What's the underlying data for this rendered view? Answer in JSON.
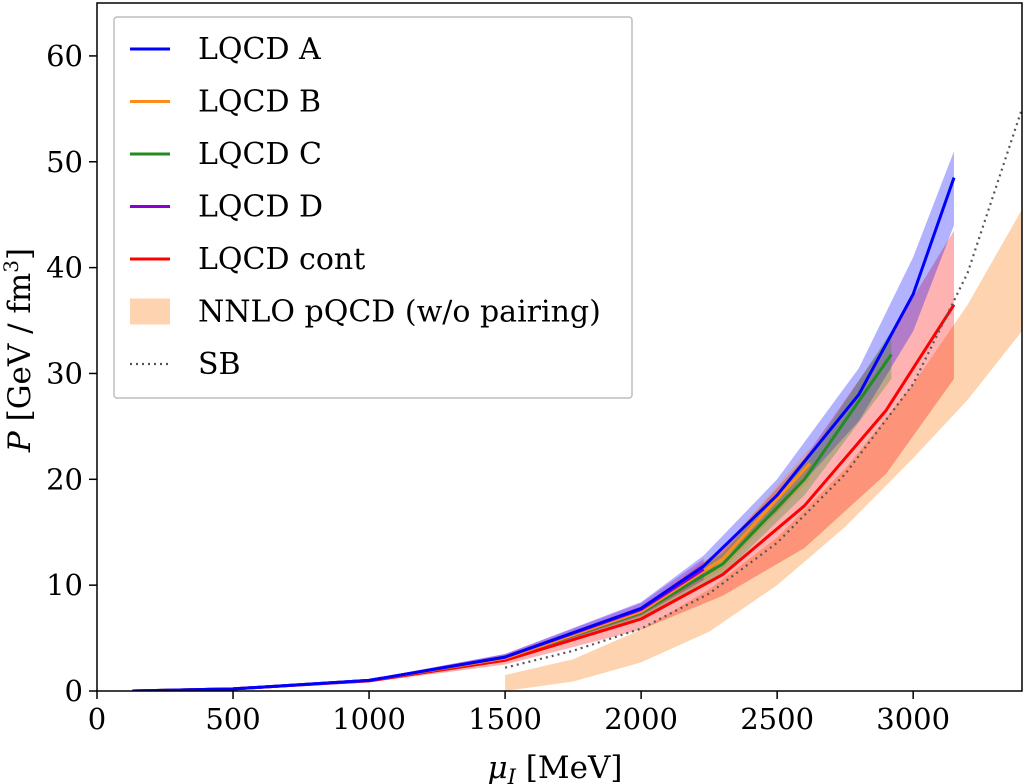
{
  "chart_data": {
    "type": "line",
    "title": "",
    "xlabel": "μ_I [MeV]",
    "xlabel_main": "μ",
    "xlabel_sub": "I",
    "xlabel_unit": " [MeV]",
    "ylabel": "P [GeV / fm³]",
    "ylabel_main": "P",
    "ylabel_unit": " [GeV / fm",
    "ylabel_sup": "3",
    "ylabel_close": "]",
    "xlim": [
      0,
      3400
    ],
    "ylim": [
      0,
      65
    ],
    "xticks": [
      0,
      500,
      1000,
      1500,
      2000,
      2500,
      3000
    ],
    "yticks": [
      0,
      10,
      20,
      30,
      40,
      50,
      60
    ],
    "xtick_labels": [
      "0",
      "500",
      "1000",
      "1500",
      "2000",
      "2500",
      "3000"
    ],
    "ytick_labels": [
      "0",
      "10",
      "20",
      "30",
      "40",
      "50",
      "60"
    ],
    "grid": false,
    "legend_position": "top-left",
    "series": [
      {
        "name": "LQCD A",
        "color": "#0000ff",
        "kind": "line_band",
        "x": [
          130,
          500,
          1000,
          1500,
          2000,
          2230,
          2500,
          2800,
          3000,
          3150
        ],
        "y": [
          0.0,
          0.2,
          1.0,
          3.2,
          7.8,
          11.8,
          18.5,
          28.0,
          37.5,
          48.5
        ],
        "band_lower": [
          0.0,
          0.15,
          0.9,
          2.9,
          7.2,
          10.8,
          17.0,
          25.5,
          34.0,
          44.0
        ],
        "band_upper": [
          0.0,
          0.25,
          1.1,
          3.5,
          8.4,
          12.8,
          20.0,
          30.5,
          41.0,
          51.0
        ]
      },
      {
        "name": "LQCD B",
        "color": "#ff8c1a",
        "kind": "line_band",
        "x": [
          130,
          500,
          1000,
          1500,
          2000,
          2300,
          2620
        ],
        "y": [
          0.0,
          0.2,
          1.0,
          3.1,
          7.5,
          12.5,
          21.5
        ],
        "band_lower": [
          0.0,
          0.15,
          0.9,
          2.8,
          7.0,
          11.5,
          20.0
        ],
        "band_upper": [
          0.0,
          0.25,
          1.1,
          3.4,
          8.0,
          13.5,
          23.0
        ]
      },
      {
        "name": "LQCD C",
        "color": "#228b22",
        "kind": "line_band",
        "x": [
          130,
          500,
          1000,
          1500,
          2000,
          2300,
          2600,
          2920
        ],
        "y": [
          0.0,
          0.2,
          1.0,
          3.1,
          7.4,
          12.0,
          20.0,
          31.8
        ],
        "band_lower": [
          0.0,
          0.15,
          0.9,
          2.8,
          6.9,
          11.0,
          18.5,
          29.5
        ],
        "band_upper": [
          0.0,
          0.25,
          1.1,
          3.4,
          7.9,
          13.0,
          21.5,
          34.0
        ]
      },
      {
        "name": "LQCD D",
        "color": "#8b00cc",
        "kind": "line_band",
        "x": [
          130,
          500,
          1000,
          1500,
          2000,
          2230
        ],
        "y": [
          0.0,
          0.2,
          1.0,
          3.2,
          7.7,
          11.5
        ],
        "band_lower": [
          0.0,
          0.15,
          0.9,
          2.9,
          7.1,
          10.5
        ],
        "band_upper": [
          0.0,
          0.25,
          1.1,
          3.5,
          8.3,
          12.5
        ]
      },
      {
        "name": "LQCD cont",
        "color": "#ff0000",
        "kind": "line_band",
        "x": [
          130,
          500,
          1000,
          1500,
          2000,
          2300,
          2600,
          2900,
          3150
        ],
        "y": [
          0.0,
          0.2,
          0.95,
          2.9,
          6.8,
          11.0,
          17.5,
          26.5,
          36.5
        ],
        "band_lower": [
          0.0,
          0.15,
          0.8,
          2.5,
          5.8,
          9.0,
          13.5,
          20.5,
          29.5
        ],
        "band_upper": [
          0.0,
          0.25,
          1.1,
          3.3,
          7.8,
          13.5,
          22.0,
          33.0,
          43.5
        ]
      },
      {
        "name": "NNLO pQCD (w/o pairing)",
        "color": "#fcc594",
        "kind": "band",
        "x": [
          1500,
          1750,
          2000,
          2250,
          2500,
          2750,
          3000,
          3200,
          3400
        ],
        "band_lower": [
          0.0,
          0.9,
          2.7,
          5.6,
          10.0,
          15.5,
          22.0,
          27.5,
          34.0
        ],
        "band_upper": [
          1.5,
          3.0,
          5.8,
          9.6,
          14.5,
          21.0,
          29.0,
          36.5,
          45.5
        ]
      },
      {
        "name": "SB",
        "color": "#555555",
        "kind": "dotted",
        "x": [
          1500,
          1750,
          2000,
          2250,
          2500,
          2750,
          3000,
          3200,
          3400
        ],
        "y": [
          2.2,
          3.8,
          5.9,
          9.2,
          14.0,
          20.5,
          29.0,
          39.5,
          55.0
        ]
      }
    ]
  }
}
